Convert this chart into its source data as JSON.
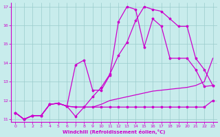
{
  "bg_color": "#c8ecec",
  "line_color": "#cc00cc",
  "grid_color": "#99cccc",
  "axis_color": "#cc00cc",
  "tick_color": "#cc00cc",
  "xlabel": "Windchill (Refroidissement éolien,°C)",
  "xlabel_color": "#cc00cc",
  "xlim": [
    -0.5,
    23.5
  ],
  "ylim": [
    10.85,
    17.2
  ],
  "xticks": [
    0,
    1,
    2,
    3,
    4,
    5,
    6,
    7,
    8,
    9,
    10,
    11,
    12,
    13,
    14,
    15,
    16,
    17,
    18,
    19,
    20,
    21,
    22,
    23
  ],
  "yticks": [
    11,
    12,
    13,
    14,
    15,
    16,
    17
  ],
  "line_flat": {
    "x": [
      0,
      1,
      2,
      3,
      4,
      5,
      6,
      7,
      8,
      9,
      10,
      11,
      12,
      13,
      14,
      15,
      16,
      17,
      18,
      19,
      20,
      21,
      22,
      23
    ],
    "y": [
      11.35,
      11.0,
      11.2,
      11.2,
      11.8,
      11.85,
      11.7,
      11.65,
      11.65,
      11.65,
      11.65,
      11.65,
      11.65,
      11.65,
      11.65,
      11.65,
      11.65,
      11.65,
      11.65,
      11.65,
      11.65,
      11.65,
      11.65,
      12.0
    ],
    "marker": true,
    "lw": 0.9
  },
  "line_mid": {
    "x": [
      0,
      1,
      2,
      3,
      4,
      5,
      6,
      7,
      8,
      9,
      10,
      11,
      12,
      13,
      14,
      15,
      16,
      17,
      18,
      19,
      20,
      21,
      22,
      23
    ],
    "y": [
      11.35,
      11.0,
      11.2,
      11.2,
      11.8,
      11.85,
      11.7,
      11.65,
      11.65,
      11.65,
      11.8,
      12.0,
      12.1,
      12.2,
      12.3,
      12.4,
      12.5,
      12.55,
      12.6,
      12.65,
      12.7,
      12.8,
      13.0,
      14.25
    ],
    "marker": false,
    "lw": 0.9
  },
  "line_smooth": {
    "x": [
      0,
      1,
      2,
      3,
      4,
      5,
      6,
      7,
      8,
      9,
      10,
      11,
      12,
      13,
      14,
      15,
      16,
      17,
      18,
      19,
      20,
      21,
      22,
      23
    ],
    "y": [
      11.35,
      11.0,
      11.2,
      11.2,
      11.8,
      11.85,
      11.7,
      11.15,
      11.65,
      12.2,
      12.7,
      13.4,
      14.4,
      15.1,
      16.25,
      17.0,
      16.85,
      16.75,
      16.35,
      15.95,
      15.95,
      14.25,
      13.65,
      12.8
    ],
    "marker": true,
    "lw": 0.9
  },
  "line_jagged": {
    "x": [
      0,
      1,
      2,
      3,
      4,
      5,
      6,
      7,
      8,
      9,
      10,
      11,
      12,
      13,
      14,
      15,
      16,
      17,
      18,
      19,
      20,
      21,
      22,
      23
    ],
    "y": [
      11.35,
      11.0,
      11.2,
      11.2,
      11.8,
      11.85,
      11.7,
      13.9,
      14.15,
      12.55,
      12.55,
      13.35,
      16.2,
      17.0,
      16.85,
      14.85,
      16.35,
      15.95,
      14.25,
      14.25,
      14.25,
      13.65,
      12.75,
      12.8
    ],
    "marker": true,
    "lw": 0.9
  }
}
